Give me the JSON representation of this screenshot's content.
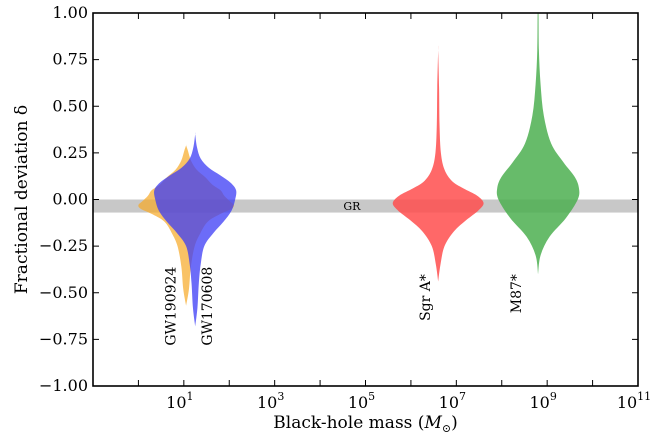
{
  "chart_data": {
    "type": "violin",
    "xlabel": "Black-hole mass",
    "xlabel_unit": "M",
    "xlabel_unit_sub": "⊙",
    "ylabel": "Fractional deviation δ",
    "xscale": "log",
    "xlim_log10": [
      -1,
      11
    ],
    "ylim": [
      -1.0,
      1.0
    ],
    "y_ticks": [
      -1.0,
      -0.75,
      -0.5,
      -0.25,
      0.0,
      0.25,
      0.5,
      0.75,
      1.0
    ],
    "y_tick_labels": [
      "−1.00",
      "−0.75",
      "−0.50",
      "−0.25",
      "0.00",
      "0.25",
      "0.50",
      "0.75",
      "1.00"
    ],
    "x_ticks_log10": [
      1,
      3,
      5,
      7,
      9,
      11
    ],
    "x_tick_labels": [
      "10",
      "10",
      "10",
      "10",
      "10",
      "10"
    ],
    "x_tick_exponents": [
      "1",
      "3",
      "5",
      "7",
      "9",
      "11"
    ],
    "gr_band": {
      "label": "GR",
      "y_center": -0.035,
      "half_width": 0.035,
      "color": "#c8c8c8"
    },
    "series": [
      {
        "name": "GW190924",
        "log10_mass": 1.05,
        "color": "#f7a823",
        "opacity": 0.7,
        "profile_y": [
          -0.57,
          -0.48,
          -0.36,
          -0.25,
          -0.18,
          -0.12,
          -0.08,
          -0.05,
          -0.03,
          -0.01,
          0.02,
          0.05,
          0.08,
          0.12,
          0.16,
          0.21,
          0.26,
          0.29
        ],
        "profile_width": [
          0.0,
          0.06,
          0.1,
          0.18,
          0.3,
          0.45,
          0.7,
          0.95,
          1.0,
          0.92,
          0.8,
          0.72,
          0.55,
          0.4,
          0.22,
          0.1,
          0.04,
          0.0
        ],
        "max_half_width_dex": 1.05
      },
      {
        "name": "GW170608",
        "log10_mass": 1.25,
        "color": "#3b3bf5",
        "opacity": 0.75,
        "profile_y": [
          -0.68,
          -0.58,
          -0.45,
          -0.35,
          -0.25,
          -0.18,
          -0.12,
          -0.06,
          0.0,
          0.05,
          0.09,
          0.13,
          0.17,
          0.22,
          0.28,
          0.35
        ],
        "profile_width": [
          0.0,
          0.05,
          0.08,
          0.12,
          0.2,
          0.4,
          0.62,
          0.8,
          0.88,
          0.9,
          0.78,
          0.55,
          0.3,
          0.12,
          0.04,
          0.0
        ],
        "max_half_width_dex": 1.0
      },
      {
        "name": "Sgr A*",
        "log10_mass": 6.6,
        "color": "#ff4d4d",
        "opacity": 0.85,
        "profile_y": [
          -0.44,
          -0.35,
          -0.25,
          -0.17,
          -0.11,
          -0.06,
          -0.02,
          0.02,
          0.06,
          0.1,
          0.16,
          0.25,
          0.4,
          0.6,
          0.8
        ],
        "profile_width": [
          0.0,
          0.05,
          0.14,
          0.35,
          0.62,
          0.88,
          1.0,
          0.86,
          0.55,
          0.3,
          0.14,
          0.06,
          0.03,
          0.02,
          0.0
        ],
        "max_half_width_dex": 1.0
      },
      {
        "name": "M87*",
        "log10_mass": 8.8,
        "color": "#4caf50",
        "opacity": 0.85,
        "profile_y": [
          -0.4,
          -0.3,
          -0.2,
          -0.1,
          0.0,
          0.06,
          0.12,
          0.2,
          0.3,
          0.45,
          0.62,
          0.8,
          1.0
        ],
        "profile_width": [
          0.0,
          0.06,
          0.28,
          0.68,
          0.97,
          1.0,
          0.9,
          0.62,
          0.32,
          0.14,
          0.06,
          0.02,
          0.01
        ],
        "max_half_width_dex": 0.9
      }
    ],
    "annotations": [
      {
        "text": "GW190924",
        "x_log10": 0.82,
        "y": -0.36,
        "rotation": -90
      },
      {
        "text": "GW170608",
        "x_log10": 1.62,
        "y": -0.36,
        "rotation": -90
      },
      {
        "text": "Sgr A*",
        "x_log10": 6.42,
        "y": -0.4,
        "rotation": -90
      },
      {
        "text": "M87*",
        "x_log10": 8.42,
        "y": -0.4,
        "rotation": -90
      }
    ]
  }
}
